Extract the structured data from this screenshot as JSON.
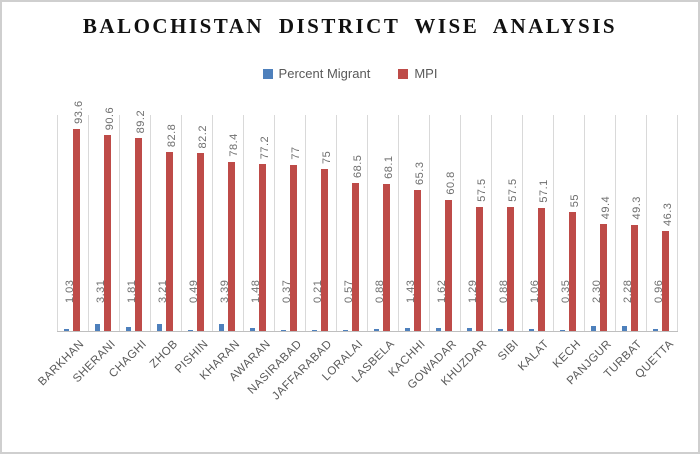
{
  "chart_data": {
    "type": "bar",
    "title": "BALOCHISTAN DISTRICT WISE ANALYSIS",
    "categories": [
      "BARKHAN",
      "SHERANI",
      "CHAGHI",
      "ZHOB",
      "PISHIN",
      "KHARAN",
      "AWARAN",
      "NASIRABAD",
      "JAFFARABAD",
      "LORALAI",
      "LASBELA",
      "KACHHI",
      "GOWADAR",
      "KHUZDAR",
      "SIBI",
      "KALAT",
      "KECH",
      "PANJGUR",
      "TURBAT",
      "QUETTA"
    ],
    "series": [
      {
        "name": "Percent Migrant",
        "color": "#4e80bc",
        "values": [
          1.03,
          3.31,
          1.81,
          3.21,
          0.49,
          3.39,
          1.48,
          0.37,
          0.21,
          0.57,
          0.88,
          1.43,
          1.62,
          1.29,
          0.88,
          1.06,
          0.35,
          2.3,
          2.28,
          0.96
        ],
        "labels": [
          "1.03",
          "3.31",
          "1.81",
          "3.21",
          "0.49",
          "3.39",
          "1.48",
          "0.37",
          "0.21",
          "0.57",
          "0.88",
          "1.43",
          "1.62",
          "1.29",
          "0.88",
          "1.06",
          "0.35",
          "2.30",
          "2.28",
          "0.96"
        ]
      },
      {
        "name": "MPI",
        "color": "#be4b48",
        "values": [
          93.6,
          90.6,
          89.2,
          82.8,
          82.2,
          78.4,
          77.2,
          77,
          75,
          68.5,
          68.1,
          65.3,
          60.8,
          57.5,
          57.5,
          57.1,
          55,
          49.4,
          49.3,
          46.3
        ],
        "labels": [
          "93.6",
          "90.6",
          "89.2",
          "82.8",
          "82.2",
          "78.4",
          "77.2",
          "77",
          "75",
          "68.5",
          "68.1",
          "65.3",
          "60.8",
          "57.5",
          "57.5",
          "57.1",
          "55",
          "49.4",
          "49.3",
          "46.3"
        ]
      }
    ],
    "xlabel": "",
    "ylabel": "",
    "ylim": [
      0,
      100
    ],
    "grid": "vertical-category-separators",
    "legend_position": "top-center",
    "value_label_rotation": 90,
    "category_label_rotation": 45
  },
  "colors": {
    "bar_blue": "#4e80bc",
    "bar_red": "#be4b48",
    "gridline": "#d9d9d9",
    "axis_line": "#bfbfbf",
    "value_label_text": "#6e6e6e",
    "category_label_text": "#595959",
    "legend_text": "#595959",
    "title_text": "#111111",
    "figure_border": "#cfcfcf"
  }
}
